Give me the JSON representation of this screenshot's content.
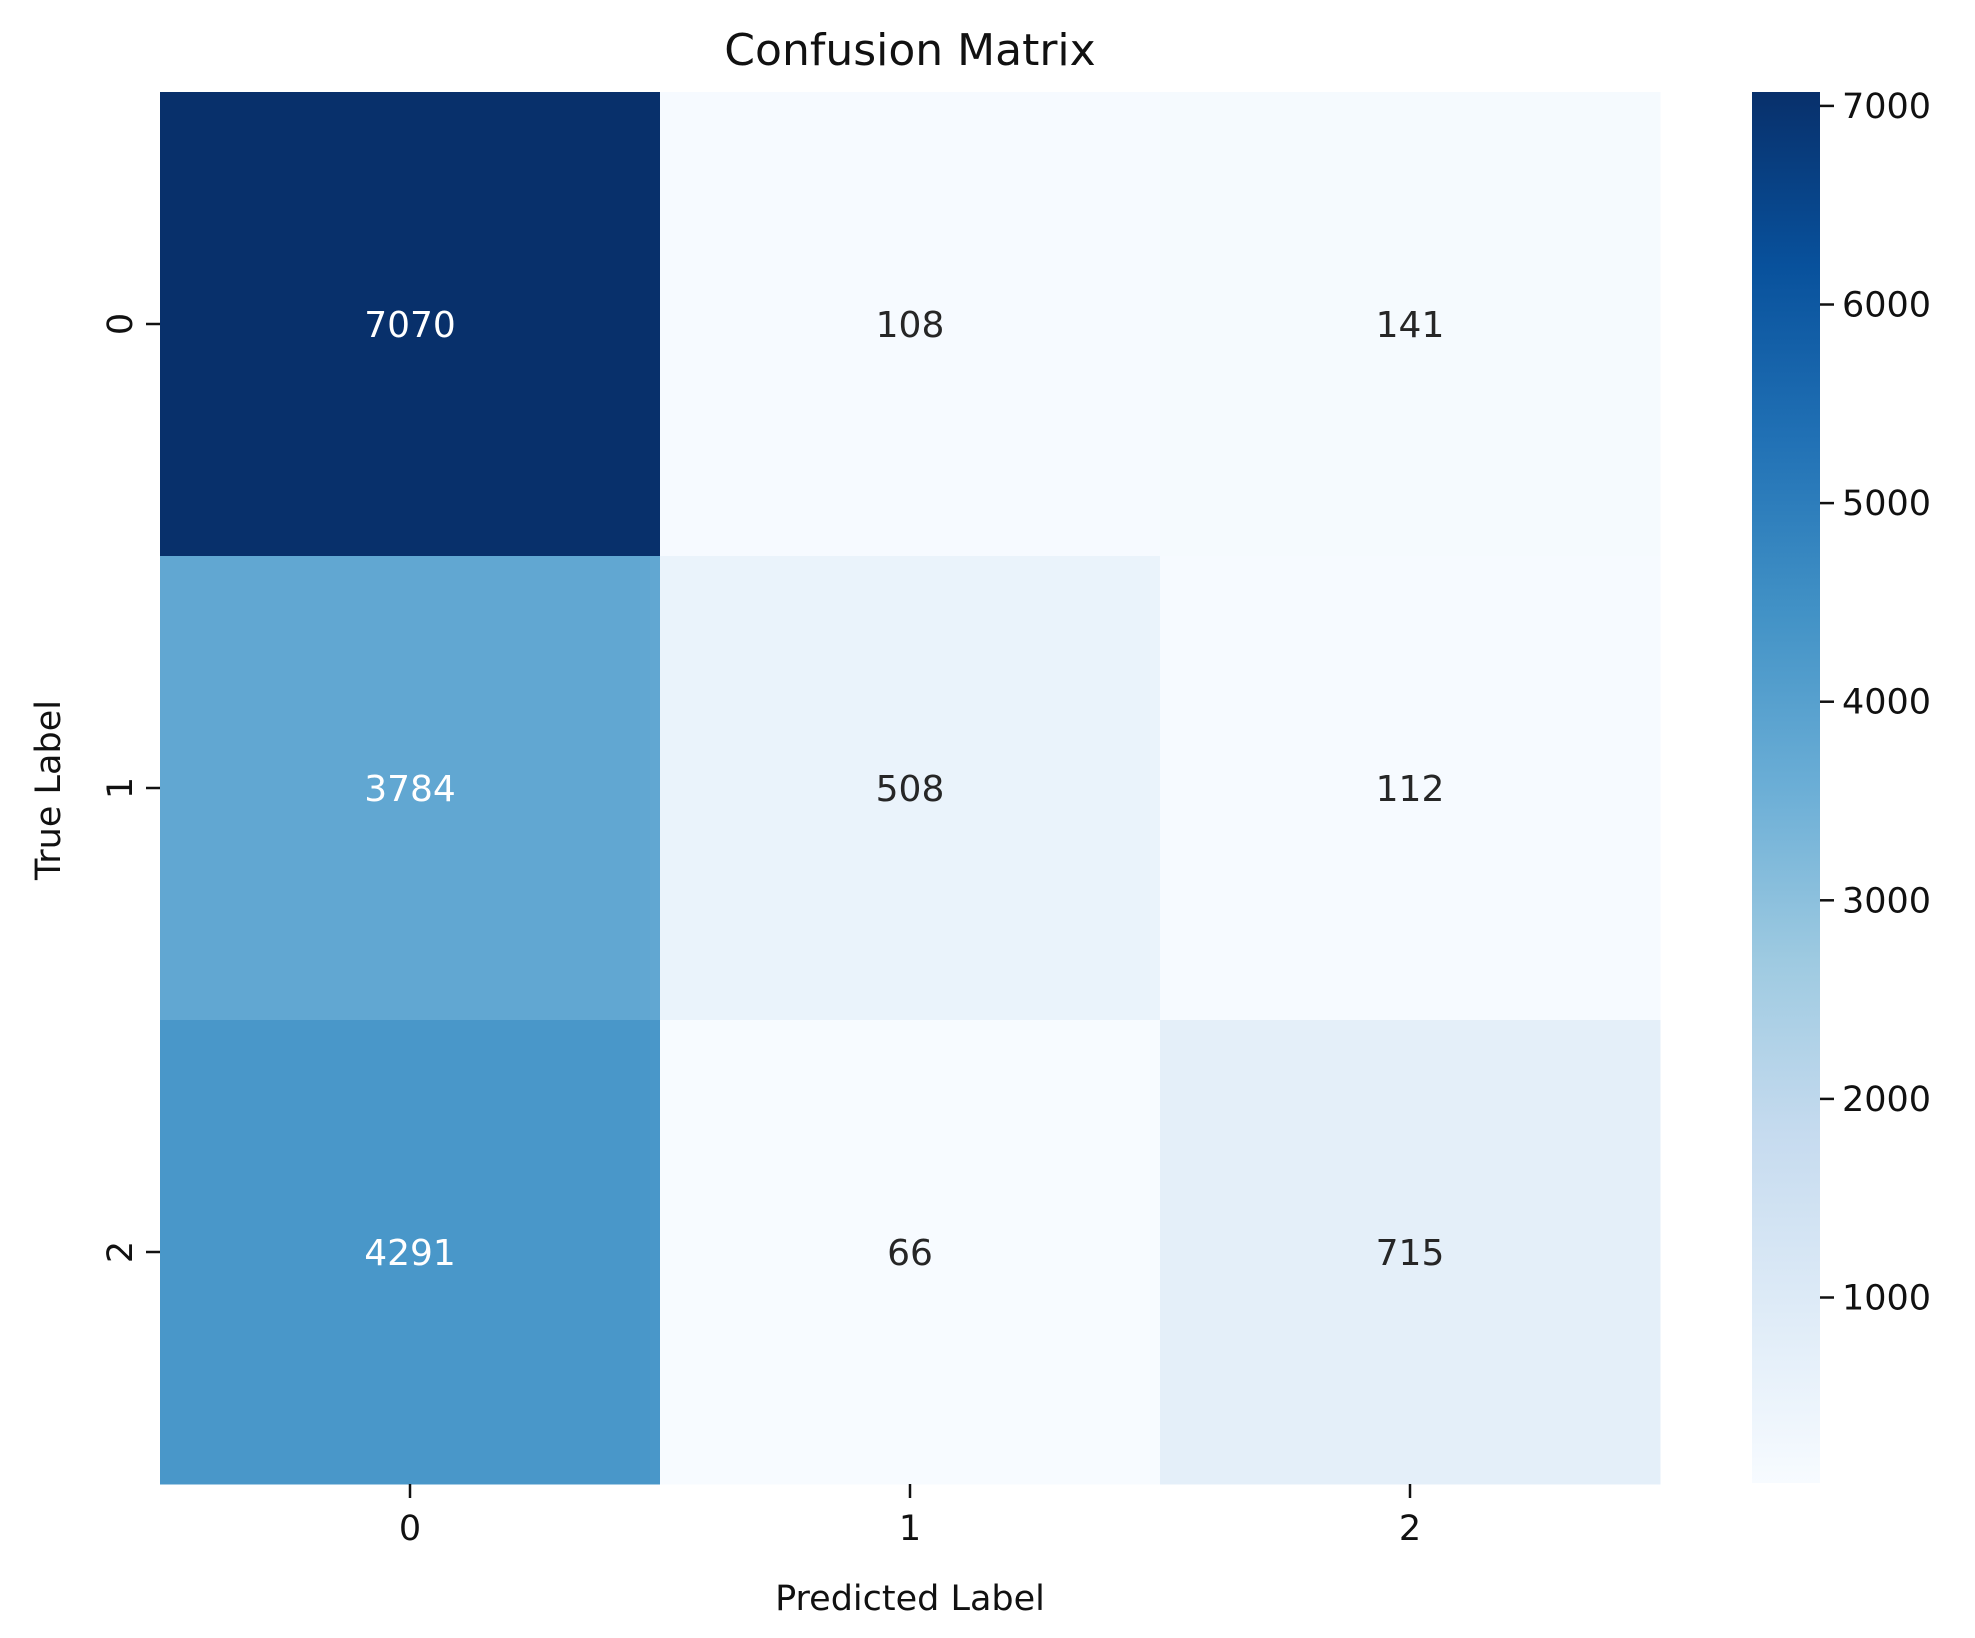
{
  "chart_data": {
    "type": "heatmap",
    "title": "Confusion Matrix",
    "xlabel": "Predicted Label",
    "ylabel": "True Label",
    "x_categories": [
      "0",
      "1",
      "2"
    ],
    "y_categories": [
      "0",
      "1",
      "2"
    ],
    "values": [
      [
        7070,
        108,
        141
      ],
      [
        3784,
        508,
        112
      ],
      [
        4291,
        66,
        715
      ]
    ],
    "colormap": "Blues",
    "colorbar": {
      "min": 66,
      "max": 7070,
      "ticks": [
        1000,
        2000,
        3000,
        4000,
        5000,
        6000,
        7000
      ]
    },
    "colors": {
      "dark_text": "#262626",
      "light_text": "#ffffff"
    }
  }
}
